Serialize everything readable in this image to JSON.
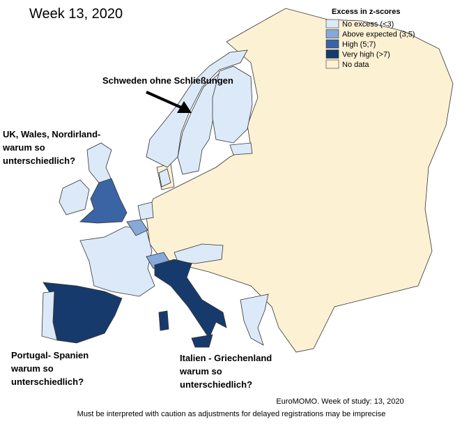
{
  "title": "Week 13, 2020",
  "legend": {
    "title": "Excess in z-scores",
    "items": [
      {
        "label": "No excess (<3)",
        "color": "#dce9f9"
      },
      {
        "label": "Above expected (3;5)",
        "color": "#86a9d9"
      },
      {
        "label": "High (5;7)",
        "color": "#3a64a4"
      },
      {
        "label": "Very high (>7)",
        "color": "#173a6c"
      },
      {
        "label": "No data",
        "color": "#fdf1d4"
      }
    ]
  },
  "annotations": [
    {
      "lines": [
        "Schweden ohne Schließungen"
      ]
    },
    {
      "lines": [
        "UK, Wales, Nordirland-",
        "warum so",
        "unterschiedlich?"
      ]
    },
    {
      "lines": [
        "Portugal- Spanien",
        "warum so",
        "unterschiedlich?"
      ]
    },
    {
      "lines": [
        "Italien - Griechenland",
        "warum so",
        "unterschiedlich?"
      ]
    }
  ],
  "footer": {
    "source": "EuroMOMO. Week of study: 13, 2020",
    "note": "Must be interpreted with caution as adjustments for delayed registrations may be imprecise"
  }
}
